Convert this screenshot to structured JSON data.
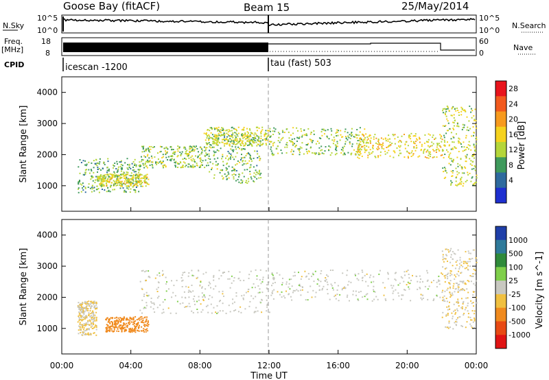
{
  "header": {
    "station": "Goose Bay (fitACF)",
    "beam": "Beam 15",
    "date": "25/May/2014"
  },
  "panels": {
    "nsky_label": "N.Sky",
    "nsky_ticks": [
      "10^5",
      "10^0"
    ],
    "nsearch_label": "N.Search",
    "nsearch_ticks": [
      "10^5",
      "10^0"
    ],
    "freq_label": "Freq.",
    "freq_unit": "[MHz]",
    "freq_ticks": [
      "18",
      "8"
    ],
    "nave_label": "Nave",
    "nave_ticks": [
      "60",
      "0"
    ],
    "cpid_label": "CPID",
    "cpid_mode_1": "icescan -1200",
    "cpid_mode_2": "tau (fast) 503"
  },
  "axes": {
    "ylabel": "Slant Range [km]",
    "yticks": [
      "4000",
      "3000",
      "2000",
      "1000"
    ],
    "xlabel": "Time UT",
    "xticks": [
      "00:00",
      "04:00",
      "08:00",
      "12:00",
      "16:00",
      "20:00",
      "00:00"
    ]
  },
  "colorbars": {
    "power": {
      "label": "Power [dB]",
      "ticks": [
        "28",
        "24",
        "20",
        "16",
        "12",
        "8",
        "4"
      ],
      "colors": [
        "#e8141c",
        "#f25a1e",
        "#f79a1e",
        "#f5d21e",
        "#b5d63a",
        "#3f9a5c",
        "#2e6a9e",
        "#1e2fd0"
      ]
    },
    "velocity": {
      "label": "Velocity [m s^-1]",
      "ticks": [
        "1000",
        "500",
        "100",
        "25",
        "-25",
        "-100",
        "-500",
        "-1000"
      ],
      "colors": [
        "#1f3fa8",
        "#2f7a9a",
        "#2f8a3a",
        "#7fcf4a",
        "#c8c8c0",
        "#f0c040",
        "#f08a1e",
        "#e84a14",
        "#e01414"
      ]
    }
  },
  "chart_data": [
    {
      "type": "heatmap",
      "title": "Power",
      "ylabel": "Slant Range [km]",
      "xlabel": "Time UT",
      "ylim": [
        180,
        4500
      ],
      "xlim": [
        "00:00",
        "24:00"
      ],
      "colorbar": "Power [dB]",
      "colorbar_range": [
        0,
        30
      ],
      "regions": [
        {
          "t": [
            0.9,
            4.5
          ],
          "r": [
            800,
            1900
          ],
          "dB": 10
        },
        {
          "t": [
            2.0,
            5.0
          ],
          "r": [
            1000,
            1400
          ],
          "dB": 15
        },
        {
          "t": [
            4.5,
            8.5
          ],
          "r": [
            1600,
            2300
          ],
          "dB": 12
        },
        {
          "t": [
            8.5,
            11.5
          ],
          "r": [
            1100,
            2700
          ],
          "dB": 11
        },
        {
          "t": [
            8.2,
            12.0
          ],
          "r": [
            2300,
            2900
          ],
          "dB": 14
        },
        {
          "t": [
            12.0,
            17.5
          ],
          "r": [
            2000,
            2900
          ],
          "dB": 12
        },
        {
          "t": [
            17.0,
            22.0
          ],
          "r": [
            1900,
            2700
          ],
          "dB": 16
        },
        {
          "t": [
            22.0,
            24.0
          ],
          "r": [
            1000,
            3600
          ],
          "dB": 14
        }
      ]
    },
    {
      "type": "heatmap",
      "title": "Velocity",
      "ylabel": "Slant Range [km]",
      "xlabel": "Time UT",
      "ylim": [
        180,
        4500
      ],
      "xlim": [
        "00:00",
        "24:00"
      ],
      "colorbar": "Velocity [m s^-1]",
      "colorbar_range": [
        -1000,
        1000
      ],
      "regions": [
        {
          "t": [
            2.5,
            5.0
          ],
          "r": [
            900,
            1400
          ],
          "v": -250
        },
        {
          "t": [
            0.9,
            2.0
          ],
          "r": [
            800,
            1900
          ],
          "v": -30
        },
        {
          "t": [
            4.5,
            12.0
          ],
          "r": [
            1500,
            2900
          ],
          "v": 0
        },
        {
          "t": [
            12.0,
            22.0
          ],
          "r": [
            1900,
            2900
          ],
          "v": 0
        },
        {
          "t": [
            22.0,
            24.0
          ],
          "r": [
            1000,
            3600
          ],
          "v": -20
        }
      ]
    }
  ]
}
